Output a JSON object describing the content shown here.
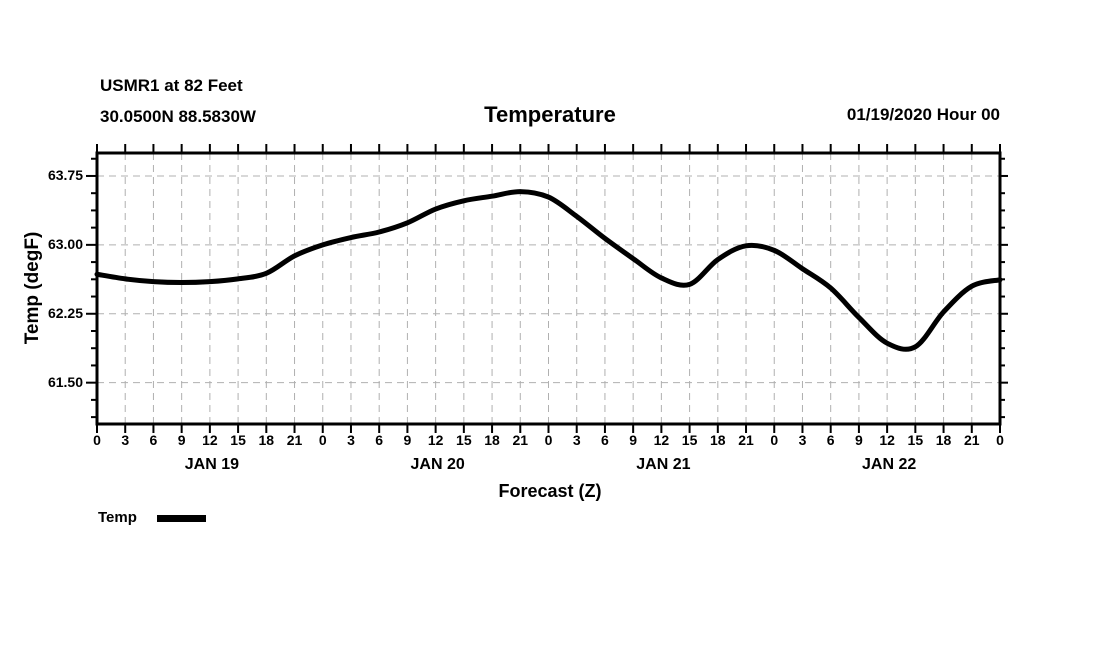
{
  "header": {
    "station": "USMR1 at 82 Feet",
    "location": "30.0500N 88.5830W",
    "title": "Temperature",
    "datetime": "01/19/2020 Hour 00"
  },
  "chart_data": {
    "type": "line",
    "title": "Temperature",
    "xlabel": "Forecast (Z)",
    "ylabel": "Temp (degF)",
    "xlim": [
      0,
      96
    ],
    "ylim": [
      61.05,
      64.0
    ],
    "grid": true,
    "legend_position": "bottom-left",
    "x_hours": [
      0,
      3,
      6,
      9,
      12,
      15,
      18,
      21,
      24,
      27,
      30,
      33,
      36,
      39,
      42,
      45,
      48,
      51,
      54,
      57,
      60,
      63,
      66,
      69,
      72,
      75,
      78,
      81,
      84,
      87,
      90,
      93,
      96
    ],
    "x_tick_labels": [
      "0",
      "3",
      "6",
      "9",
      "12",
      "15",
      "18",
      "21",
      "0",
      "3",
      "6",
      "9",
      "12",
      "15",
      "18",
      "21",
      "0",
      "3",
      "6",
      "9",
      "12",
      "15",
      "18",
      "21",
      "0",
      "3",
      "6",
      "9",
      "12",
      "15",
      "18",
      "21",
      "0"
    ],
    "day_labels": [
      {
        "label": "JAN 19",
        "center_hour": 12
      },
      {
        "label": "JAN 20",
        "center_hour": 36
      },
      {
        "label": "JAN 21",
        "center_hour": 60
      },
      {
        "label": "JAN 22",
        "center_hour": 84
      }
    ],
    "y_major_ticks": [
      61.5,
      62.25,
      63.0,
      63.75
    ],
    "y_tick_labels": [
      "61.50",
      "62.25",
      "63.00",
      "63.75"
    ],
    "y_minor_step": 0.1875,
    "series": [
      {
        "name": "Temp",
        "color": "#000000",
        "values": [
          62.68,
          62.63,
          62.6,
          62.59,
          62.6,
          62.63,
          62.69,
          62.88,
          63.0,
          63.08,
          63.14,
          63.24,
          63.39,
          63.48,
          63.53,
          63.58,
          63.52,
          63.31,
          63.07,
          62.85,
          62.64,
          62.57,
          62.84,
          62.99,
          62.94,
          62.74,
          62.53,
          62.21,
          61.93,
          61.89,
          62.27,
          62.55,
          62.62
        ]
      }
    ]
  },
  "legend": {
    "label": "Temp",
    "color": "#000000"
  },
  "colors": {
    "background": "#ffffff",
    "grid": "#b0b0b0",
    "axis": "#000000",
    "text": "#000000"
  }
}
